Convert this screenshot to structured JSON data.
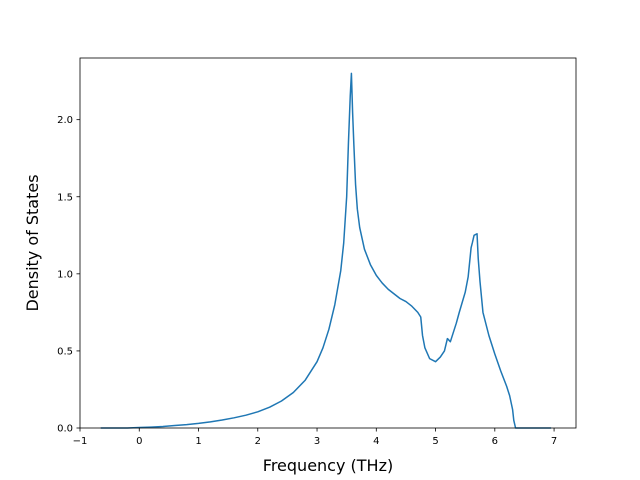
{
  "chart_data": {
    "type": "line",
    "title": "",
    "xlabel": "Frequency (THz)",
    "ylabel": "Density of States",
    "xlim": [
      -1,
      7.37
    ],
    "ylim": [
      0,
      2.4
    ],
    "xticks": [
      -1,
      0,
      1,
      2,
      3,
      4,
      5,
      6,
      7
    ],
    "yticks": [
      0.0,
      0.5,
      1.0,
      1.5,
      2.0
    ],
    "xtick_labels": [
      "−1",
      "0",
      "1",
      "2",
      "3",
      "4",
      "5",
      "6",
      "7"
    ],
    "ytick_labels": [
      "0.0",
      "0.5",
      "1.0",
      "1.5",
      "2.0"
    ],
    "grid": false,
    "legend": "none",
    "line_color": "#1f77b4",
    "series": [
      {
        "x": [
          -0.65,
          -0.4,
          -0.2,
          0.0,
          0.2,
          0.4,
          0.6,
          0.8,
          1.0,
          1.2,
          1.4,
          1.6,
          1.8,
          2.0,
          2.2,
          2.4,
          2.6,
          2.8,
          3.0,
          3.1,
          3.2,
          3.3,
          3.4,
          3.45,
          3.5,
          3.53,
          3.56,
          3.58,
          3.6,
          3.62,
          3.65,
          3.68,
          3.72,
          3.8,
          3.9,
          4.0,
          4.1,
          4.2,
          4.3,
          4.4,
          4.5,
          4.6,
          4.7,
          4.75,
          4.78,
          4.82,
          4.9,
          5.0,
          5.08,
          5.15,
          5.2,
          5.25,
          5.3,
          5.35,
          5.4,
          5.5,
          5.55,
          5.6,
          5.62,
          5.65,
          5.7,
          5.72,
          5.75,
          5.8,
          5.9,
          6.0,
          6.1,
          6.2,
          6.25,
          6.3,
          6.32,
          6.35,
          6.4,
          6.6,
          6.8,
          6.95
        ],
        "y": [
          0.0,
          0.0,
          0.0,
          0.003,
          0.006,
          0.01,
          0.016,
          0.022,
          0.03,
          0.04,
          0.052,
          0.066,
          0.083,
          0.105,
          0.135,
          0.175,
          0.23,
          0.31,
          0.43,
          0.52,
          0.64,
          0.8,
          1.02,
          1.2,
          1.5,
          1.85,
          2.15,
          2.3,
          2.05,
          1.85,
          1.58,
          1.42,
          1.3,
          1.16,
          1.06,
          0.99,
          0.94,
          0.9,
          0.87,
          0.84,
          0.82,
          0.79,
          0.75,
          0.72,
          0.6,
          0.52,
          0.45,
          0.43,
          0.46,
          0.5,
          0.58,
          0.56,
          0.62,
          0.68,
          0.75,
          0.88,
          0.98,
          1.17,
          1.2,
          1.25,
          1.26,
          1.1,
          0.95,
          0.75,
          0.6,
          0.48,
          0.37,
          0.27,
          0.21,
          0.12,
          0.05,
          0.0,
          0.0,
          0.0,
          0.0,
          0.0
        ]
      }
    ]
  }
}
